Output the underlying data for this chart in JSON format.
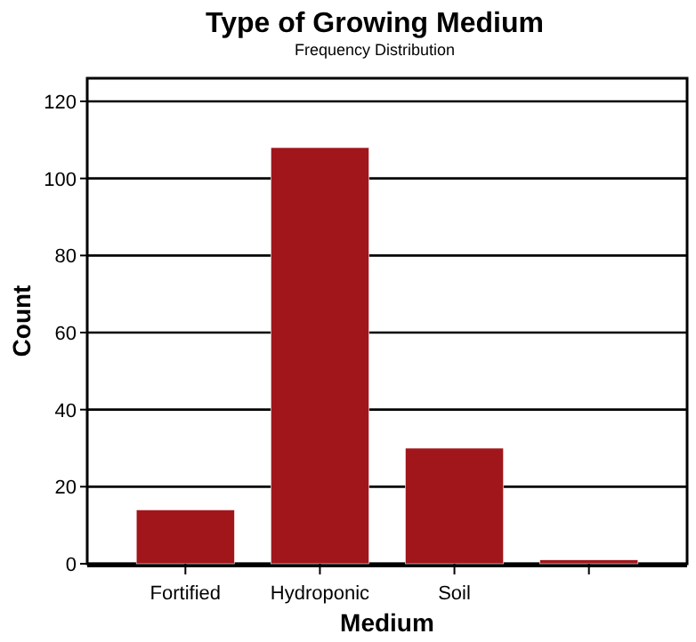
{
  "chart_data": {
    "type": "bar",
    "title": "Type of Growing Medium",
    "subtitle": "Frequency Distribution",
    "xlabel": "Medium",
    "ylabel": "Count",
    "categories": [
      "Fortified",
      "Hydroponic",
      "Soil",
      null
    ],
    "values": [
      14,
      108,
      30,
      1
    ],
    "color": "#a0161b",
    "ylim": [
      0,
      126
    ],
    "yticks": [
      0,
      20,
      40,
      60,
      80,
      100,
      120
    ],
    "grid": "y"
  }
}
